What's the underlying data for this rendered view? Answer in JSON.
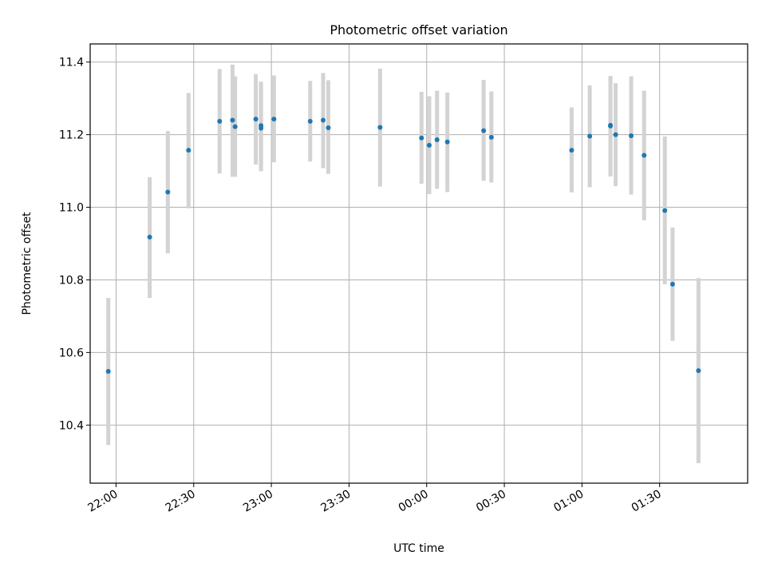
{
  "chart_data": {
    "type": "scatter",
    "title": "Photometric offset variation",
    "xlabel": "UTC time",
    "ylabel": "Photometric offset",
    "grid": true,
    "xlim": [
      "21:50",
      "02:04"
    ],
    "ylim": [
      10.24,
      11.45
    ],
    "x_ticks": [
      "22:00",
      "22:30",
      "23:00",
      "23:30",
      "00:00",
      "00:30",
      "01:00",
      "01:30"
    ],
    "y_ticks": [
      "10.4",
      "10.6",
      "10.8",
      "11.0",
      "11.2",
      "11.4"
    ],
    "errorbar_color": "#d3d3d3",
    "marker_color": "#1f77b4",
    "points": [
      {
        "time": "21:57",
        "y": 10.548,
        "ylow": 10.345,
        "yhigh": 10.75
      },
      {
        "time": "22:13",
        "y": 10.918,
        "ylow": 10.75,
        "yhigh": 11.083
      },
      {
        "time": "22:20",
        "y": 11.042,
        "ylow": 10.873,
        "yhigh": 11.21
      },
      {
        "time": "22:28",
        "y": 11.157,
        "ylow": 10.997,
        "yhigh": 11.315
      },
      {
        "time": "22:40",
        "y": 11.237,
        "ylow": 11.093,
        "yhigh": 11.381
      },
      {
        "time": "22:45",
        "y": 11.24,
        "ylow": 11.084,
        "yhigh": 11.393
      },
      {
        "time": "22:46",
        "y": 11.222,
        "ylow": 11.084,
        "yhigh": 11.361
      },
      {
        "time": "22:54",
        "y": 11.243,
        "ylow": 11.118,
        "yhigh": 11.367
      },
      {
        "time": "22:56",
        "y": 11.218,
        "ylow": 11.099,
        "yhigh": 11.346
      },
      {
        "time": "22:56",
        "y": 11.225,
        "ylow": 11.104,
        "yhigh": 11.344
      },
      {
        "time": "23:01",
        "y": 11.243,
        "ylow": 11.124,
        "yhigh": 11.363
      },
      {
        "time": "23:15",
        "y": 11.237,
        "ylow": 11.126,
        "yhigh": 11.348
      },
      {
        "time": "23:20",
        "y": 11.24,
        "ylow": 11.108,
        "yhigh": 11.37
      },
      {
        "time": "23:22",
        "y": 11.219,
        "ylow": 11.092,
        "yhigh": 11.35
      },
      {
        "time": "23:42",
        "y": 11.22,
        "ylow": 11.057,
        "yhigh": 11.382
      },
      {
        "time": "23:58",
        "y": 11.191,
        "ylow": 11.065,
        "yhigh": 11.318
      },
      {
        "time": "00:01",
        "y": 11.171,
        "ylow": 11.036,
        "yhigh": 11.306
      },
      {
        "time": "00:04",
        "y": 11.186,
        "ylow": 11.051,
        "yhigh": 11.321
      },
      {
        "time": "00:08",
        "y": 11.18,
        "ylow": 11.042,
        "yhigh": 11.316
      },
      {
        "time": "00:22",
        "y": 11.211,
        "ylow": 11.073,
        "yhigh": 11.351
      },
      {
        "time": "00:25",
        "y": 11.193,
        "ylow": 11.068,
        "yhigh": 11.319
      },
      {
        "time": "00:56",
        "y": 11.157,
        "ylow": 11.041,
        "yhigh": 11.275
      },
      {
        "time": "01:03",
        "y": 11.196,
        "ylow": 11.055,
        "yhigh": 11.336
      },
      {
        "time": "01:11",
        "y": 11.224,
        "ylow": 11.085,
        "yhigh": 11.362
      },
      {
        "time": "01:11",
        "y": 11.226,
        "ylow": 11.087,
        "yhigh": 11.36
      },
      {
        "time": "01:13",
        "y": 11.2,
        "ylow": 11.058,
        "yhigh": 11.342
      },
      {
        "time": "01:19",
        "y": 11.197,
        "ylow": 11.035,
        "yhigh": 11.361
      },
      {
        "time": "01:24",
        "y": 11.143,
        "ylow": 10.964,
        "yhigh": 11.321
      },
      {
        "time": "01:32",
        "y": 10.991,
        "ylow": 10.788,
        "yhigh": 11.195
      },
      {
        "time": "01:35",
        "y": 10.788,
        "ylow": 10.632,
        "yhigh": 10.944
      },
      {
        "time": "01:45",
        "y": 10.55,
        "ylow": 10.295,
        "yhigh": 10.805
      }
    ]
  }
}
